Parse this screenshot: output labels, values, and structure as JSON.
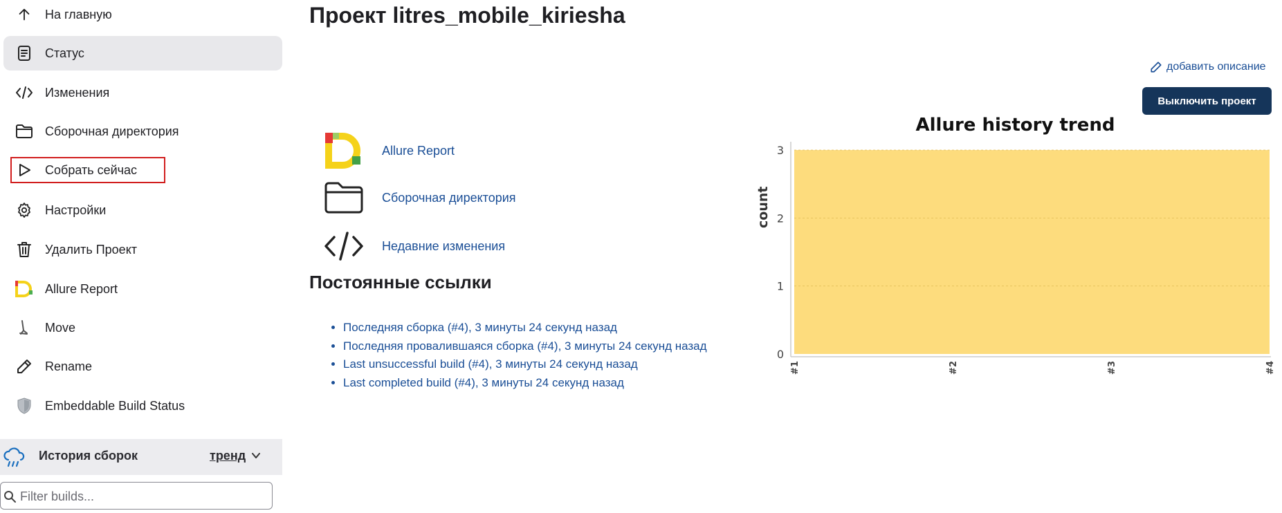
{
  "sidebar": {
    "items": [
      {
        "label": "На главную",
        "icon": "arrow-up-icon"
      },
      {
        "label": "Статус",
        "icon": "document-icon"
      },
      {
        "label": "Изменения",
        "icon": "code-icon"
      },
      {
        "label": "Сборочная директория",
        "icon": "folder-icon"
      },
      {
        "label": "Собрать сейчас",
        "icon": "play-icon"
      },
      {
        "label": "Настройки",
        "icon": "gear-icon"
      },
      {
        "label": "Удалить Проект",
        "icon": "trash-icon"
      },
      {
        "label": "Allure Report",
        "icon": "allure-logo-icon"
      },
      {
        "label": "Move",
        "icon": "move-icon"
      },
      {
        "label": "Rename",
        "icon": "pencil-icon"
      },
      {
        "label": "Embeddable Build Status",
        "icon": "shield-icon"
      }
    ],
    "history": {
      "title": "История сборок",
      "trend": "тренд",
      "filter_placeholder": "Filter builds..."
    }
  },
  "main": {
    "title": "Проект litres_mobile_kiriesha",
    "add_description": "добавить описание",
    "disable_button": "Выключить проект",
    "links": [
      {
        "label": "Allure Report",
        "icon": "allure-logo-icon"
      },
      {
        "label": "Сборочная директория",
        "icon": "folder-icon"
      },
      {
        "label": "Недавние изменения",
        "icon": "code-icon"
      }
    ],
    "permalinks_title": "Постоянные ссылки",
    "permalinks": [
      "Последняя сборка (#4), 3 минуты 24 секунд назад",
      "Последняя провалившаяся сборка (#4), 3 минуты 24 секунд назад",
      "Last unsuccessful build (#4), 3 минуты 24 секунд назад",
      "Last completed build (#4), 3 минуты 24 секунд назад"
    ]
  },
  "colors": {
    "accent": "#15355a",
    "link": "#1a4e96",
    "highlight_border": "#d11d1d",
    "chart_fill": "#fddc7d"
  },
  "chart_data": {
    "type": "area",
    "title": "Allure history trend",
    "xlabel": "",
    "ylabel": "count",
    "categories": [
      "#1",
      "#2",
      "#3",
      "#4"
    ],
    "series": [
      {
        "values": [
          3,
          3,
          3,
          3
        ]
      }
    ],
    "ylim": [
      0,
      3
    ],
    "yticks": [
      0,
      1,
      2,
      3
    ],
    "grid": true,
    "legend": "none"
  }
}
